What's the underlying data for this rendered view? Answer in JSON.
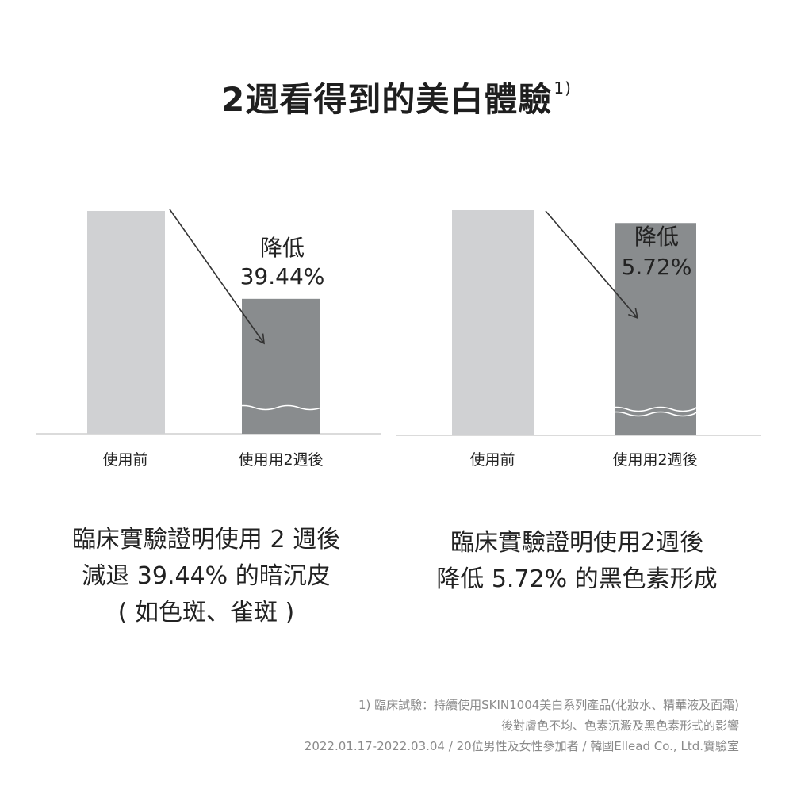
{
  "title": "2週看得到的美白體驗",
  "title_sup": "1)",
  "chart_data": [
    {
      "type": "bar",
      "categories": [
        "使用前",
        "使用用2週後"
      ],
      "values": [
        100,
        60.56
      ],
      "annotation": {
        "line1": "降低",
        "line2": "39.44%"
      },
      "colors": [
        "#d0d1d3",
        "#898c8e"
      ]
    },
    {
      "type": "bar",
      "categories": [
        "使用前",
        "使用用2週後"
      ],
      "values": [
        100,
        94.28
      ],
      "annotation": {
        "line1": "降低",
        "line2": "5.72%"
      },
      "colors": [
        "#d0d1d3",
        "#898c8e"
      ]
    }
  ],
  "captions": [
    [
      "臨床實驗證明使用 2 週後",
      "減退 39.44% 的暗沉皮",
      "( 如色斑、雀斑 )"
    ],
    [
      "臨床實驗證明使用2週後",
      "降低 5.72% 的黑色素形成"
    ]
  ],
  "footnote": [
    "1) 臨床試驗：持續使用SKIN1004美白系列產品(化妝水、精華液及面霜)",
    "後對膚色不均、色素沉澱及黑色素形式的影響",
    "2022.01.17-2022.03.04 / 20位男性及女性參加者 / 韓國Ellead Co., Ltd.實驗室"
  ]
}
